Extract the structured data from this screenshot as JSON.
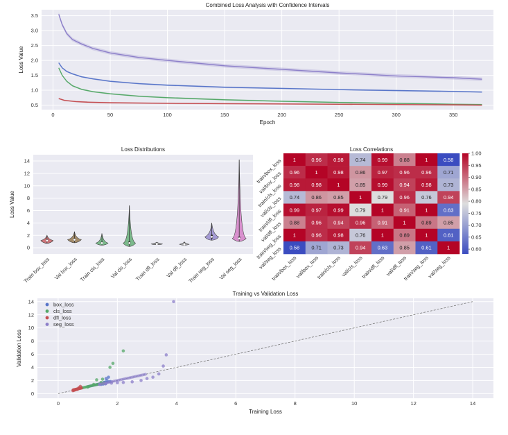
{
  "chart_data": [
    {
      "type": "line",
      "title": "Combined Loss Analysis with Confidence Intervals",
      "xlabel": "Epoch",
      "ylabel": "Loss Value",
      "xlim": [
        -10,
        385
      ],
      "ylim": [
        0.35,
        3.7
      ],
      "xticks": [
        0,
        50,
        100,
        150,
        200,
        250,
        300,
        350
      ],
      "yticks": [
        0.5,
        1.0,
        1.5,
        2.0,
        2.5,
        3.0,
        3.5
      ],
      "grid": true,
      "series": [
        {
          "color": "#8c7fc9",
          "x": [
            5,
            8,
            12,
            17,
            25,
            35,
            50,
            75,
            100,
            150,
            200,
            250,
            300,
            350,
            375
          ],
          "y": [
            3.55,
            3.2,
            2.9,
            2.7,
            2.55,
            2.4,
            2.25,
            2.1,
            2.0,
            1.82,
            1.7,
            1.58,
            1.48,
            1.42,
            1.37
          ]
        },
        {
          "color": "#5875c9",
          "x": [
            5,
            8,
            12,
            17,
            25,
            35,
            50,
            75,
            100,
            150,
            200,
            250,
            300,
            350,
            375
          ],
          "y": [
            1.92,
            1.75,
            1.63,
            1.55,
            1.45,
            1.38,
            1.3,
            1.22,
            1.17,
            1.1,
            1.06,
            1.02,
            0.99,
            0.96,
            0.94
          ]
        },
        {
          "color": "#55a868",
          "x": [
            5,
            8,
            12,
            17,
            25,
            35,
            50,
            75,
            100,
            150,
            200,
            250,
            300,
            350,
            375
          ],
          "y": [
            1.75,
            1.5,
            1.3,
            1.15,
            1.03,
            0.95,
            0.88,
            0.8,
            0.75,
            0.68,
            0.63,
            0.59,
            0.56,
            0.53,
            0.52
          ]
        },
        {
          "color": "#c44e52",
          "x": [
            5,
            10,
            20,
            30,
            50,
            100,
            150,
            200,
            250,
            300,
            350,
            375
          ],
          "y": [
            0.72,
            0.66,
            0.62,
            0.6,
            0.58,
            0.56,
            0.55,
            0.54,
            0.53,
            0.52,
            0.51,
            0.5
          ]
        }
      ]
    },
    {
      "type": "violin",
      "title": "Loss Distributions",
      "ylabel": "Loss Value",
      "ylim": [
        -1,
        15
      ],
      "yticks": [
        0,
        2,
        4,
        6,
        8,
        10,
        12,
        14
      ],
      "categories": [
        "Train box_loss",
        "Val box_loss",
        "Train cls_loss",
        "Val cls_loss",
        "Train dfl_loss",
        "Val dfl_loss",
        "Train seg_loss",
        "Val seg_loss"
      ],
      "colors": [
        "#c44e52",
        "#8c6c3c",
        "#55a868",
        "#55a868",
        "#8c8c8c",
        "#8c8c8c",
        "#8c7fc9",
        "#d070c0"
      ],
      "min": [
        0.7,
        0.8,
        0.4,
        0.2,
        0.5,
        0.4,
        1.2,
        1.0
      ],
      "q1": [
        1.0,
        1.15,
        0.6,
        0.55,
        0.55,
        0.5,
        1.5,
        1.35
      ],
      "median": [
        1.15,
        1.3,
        0.75,
        0.75,
        0.6,
        0.55,
        1.75,
        1.5
      ],
      "q3": [
        1.35,
        1.5,
        0.95,
        1.0,
        0.7,
        0.65,
        2.1,
        1.8
      ],
      "max": [
        2.0,
        2.6,
        2.3,
        6.8,
        0.9,
        0.95,
        4.0,
        14.2
      ],
      "width": [
        0.45,
        0.5,
        0.45,
        0.45,
        0.4,
        0.35,
        0.5,
        0.5
      ]
    },
    {
      "type": "heatmap",
      "title": "Loss Correlations",
      "labels": [
        "train/box_loss",
        "val/box_loss",
        "train/cls_loss",
        "val/cls_loss",
        "train/dfl_loss",
        "val/dfl_loss",
        "train/seg_loss",
        "val/seg_loss"
      ],
      "values": [
        [
          "1",
          "0.96",
          "0.98",
          "0.74",
          "0.99",
          "0.88",
          "1",
          "0.58"
        ],
        [
          "0.96",
          "1",
          "0.98",
          "0.86",
          "0.97",
          "0.96",
          "0.96",
          "0.71"
        ],
        [
          "0.98",
          "0.98",
          "1",
          "0.85",
          "0.99",
          "0.94",
          "0.98",
          "0.73"
        ],
        [
          "0.74",
          "0.86",
          "0.85",
          "1",
          "0.79",
          "0.96",
          "0.76",
          "0.94"
        ],
        [
          "0.99",
          "0.97",
          "0.99",
          "0.79",
          "1",
          "0.91",
          "1",
          "0.63"
        ],
        [
          "0.88",
          "0.96",
          "0.94",
          "0.96",
          "0.91",
          "1",
          "0.89",
          "0.85"
        ],
        [
          "1",
          "0.96",
          "0.98",
          "0.76",
          "1",
          "0.89",
          "1",
          "0.61"
        ],
        [
          "0.58",
          "0.71",
          "0.73",
          "0.94",
          "0.63",
          "0.85",
          "0.61",
          "1"
        ]
      ],
      "colorbar": {
        "min": 0.58,
        "max": 1.0,
        "ticks": [
          "0.60",
          "0.65",
          "0.70",
          "0.75",
          "0.80",
          "0.85",
          "0.90",
          "0.95",
          "1.00"
        ]
      },
      "colors": {
        "low": "#3b4cc0",
        "mid": "#dddddd",
        "high": "#b40426"
      }
    },
    {
      "type": "scatter",
      "title": "Training vs Validation Loss",
      "xlabel": "Training Loss",
      "ylabel": "Validation Loss",
      "xlim": [
        -0.7,
        14.7
      ],
      "ylim": [
        -0.7,
        14.5
      ],
      "xticks": [
        0,
        2,
        4,
        6,
        8,
        10,
        12,
        14
      ],
      "yticks": [
        0,
        2,
        4,
        6,
        8,
        10,
        12,
        14
      ],
      "legend": "top-left",
      "reference_line": {
        "x": [
          0,
          14
        ],
        "y": [
          0,
          14
        ],
        "color": "#777777"
      },
      "series": [
        {
          "name": "box_loss",
          "color": "#5875c9",
          "x": [
            1.45,
            1.5,
            1.55,
            1.62,
            1.7,
            1.55,
            1.6,
            1.65,
            1.58,
            1.52
          ],
          "y": [
            1.4,
            1.55,
            1.7,
            2.3,
            2.5,
            1.6,
            1.5,
            2.0,
            1.75,
            1.45
          ]
        },
        {
          "name": "cls_loss",
          "color": "#55a868",
          "x": [
            0.55,
            0.65,
            0.8,
            1.0,
            1.2,
            1.45,
            1.75,
            1.85,
            2.2,
            1.5,
            1.3
          ],
          "y": [
            0.55,
            0.7,
            0.9,
            1.0,
            1.4,
            1.7,
            4.0,
            4.6,
            6.5,
            2.2,
            2.1
          ]
        },
        {
          "name": "dfl_loss",
          "color": "#c44e52",
          "x": [
            0.5,
            0.53,
            0.56,
            0.6,
            0.65,
            0.7,
            0.75
          ],
          "y": [
            0.45,
            0.5,
            0.55,
            0.6,
            0.65,
            0.9,
            1.1
          ]
        },
        {
          "name": "seg_loss",
          "color": "#8c7fc9",
          "x": [
            1.4,
            1.6,
            1.8,
            2.0,
            2.2,
            2.5,
            2.8,
            3.0,
            3.2,
            3.4,
            3.55,
            3.65,
            3.9
          ],
          "y": [
            1.4,
            1.5,
            1.6,
            1.65,
            1.7,
            1.8,
            2.0,
            2.3,
            2.5,
            3.0,
            4.2,
            5.9,
            14.0
          ]
        }
      ]
    }
  ]
}
